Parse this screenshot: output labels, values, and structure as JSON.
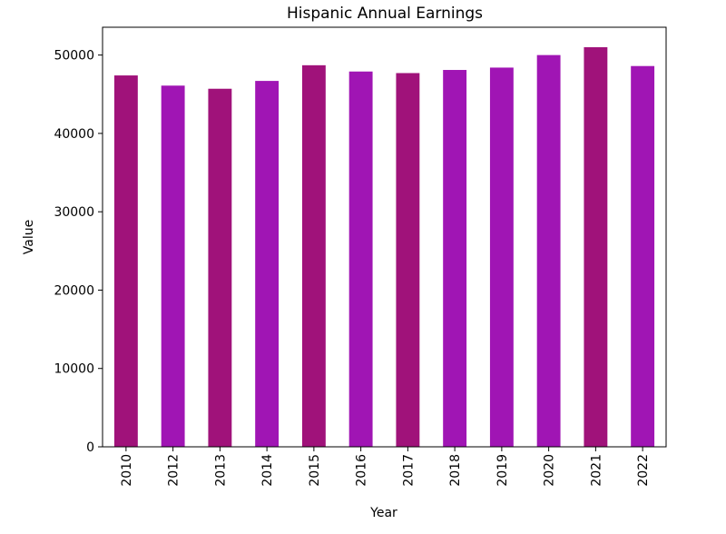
{
  "chart_data": {
    "type": "bar",
    "title": "Hispanic Annual Earnings",
    "xlabel": "Year",
    "ylabel": "Value",
    "categories": [
      "2010",
      "2012",
      "2013",
      "2014",
      "2015",
      "2016",
      "2017",
      "2018",
      "2019",
      "2020",
      "2021",
      "2022"
    ],
    "values": [
      47400,
      46100,
      45700,
      46700,
      48700,
      47900,
      47700,
      48100,
      48400,
      50000,
      51000,
      48600
    ],
    "bar_colors": [
      "#a0127a",
      "#a015b4",
      "#a0127a",
      "#a015b4",
      "#a0127a",
      "#a015b4",
      "#a0127a",
      "#a015b4",
      "#a015b4",
      "#a015b4",
      "#a0127a",
      "#a015b4"
    ],
    "yticks": [
      0,
      10000,
      20000,
      30000,
      40000,
      50000
    ],
    "ylim": [
      0,
      53550
    ],
    "grid": false,
    "legend": "none"
  }
}
